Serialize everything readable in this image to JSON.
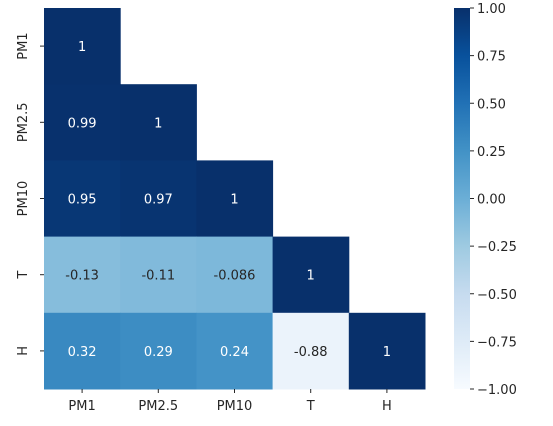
{
  "chart_data": {
    "type": "heatmap",
    "x_categories": [
      "PM1",
      "PM2.5",
      "PM10",
      "T",
      "H"
    ],
    "y_categories": [
      "PM1",
      "PM2.5",
      "PM10",
      "T",
      "H"
    ],
    "cells": [
      {
        "row": "PM1",
        "col": "PM1",
        "value": 1,
        "label": "1"
      },
      {
        "row": "PM2.5",
        "col": "PM1",
        "value": 0.99,
        "label": "0.99"
      },
      {
        "row": "PM2.5",
        "col": "PM2.5",
        "value": 1,
        "label": "1"
      },
      {
        "row": "PM10",
        "col": "PM1",
        "value": 0.95,
        "label": "0.95"
      },
      {
        "row": "PM10",
        "col": "PM2.5",
        "value": 0.97,
        "label": "0.97"
      },
      {
        "row": "PM10",
        "col": "PM10",
        "value": 1,
        "label": "1"
      },
      {
        "row": "T",
        "col": "PM1",
        "value": -0.13,
        "label": "-0.13"
      },
      {
        "row": "T",
        "col": "PM2.5",
        "value": -0.11,
        "label": "-0.11"
      },
      {
        "row": "T",
        "col": "PM10",
        "value": -0.086,
        "label": "-0.086"
      },
      {
        "row": "T",
        "col": "T",
        "value": 1,
        "label": "1"
      },
      {
        "row": "H",
        "col": "PM1",
        "value": 0.32,
        "label": "0.32"
      },
      {
        "row": "H",
        "col": "PM2.5",
        "value": 0.29,
        "label": "0.29"
      },
      {
        "row": "H",
        "col": "PM10",
        "value": 0.24,
        "label": "0.24"
      },
      {
        "row": "H",
        "col": "T",
        "value": -0.88,
        "label": "-0.88"
      },
      {
        "row": "H",
        "col": "H",
        "value": 1,
        "label": "1"
      }
    ],
    "masked": "upper-triangle",
    "colormap": "Blues",
    "colorbar": {
      "range": [
        -1.0,
        1.0
      ],
      "ticks": [
        "1.00",
        "0.75",
        "0.50",
        "0.25",
        "0.00",
        "−0.25",
        "−0.50",
        "−0.75",
        "−1.00"
      ],
      "placement": "right"
    },
    "colors": {
      "low": "#f7fbff",
      "high": "#08306b",
      "text_on_dark": "#ffffff",
      "text_on_light": "#262626"
    }
  }
}
